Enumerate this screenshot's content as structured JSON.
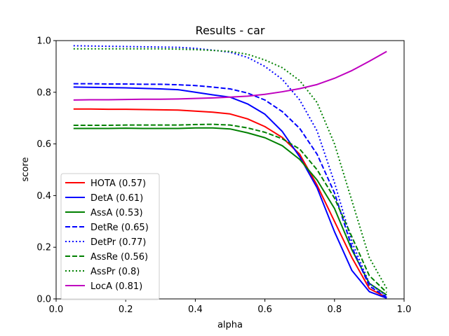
{
  "chart_data": {
    "type": "line",
    "title": "Results - car",
    "xlabel": "alpha",
    "ylabel": "score",
    "xlim": [
      0.0,
      1.0
    ],
    "ylim": [
      0.0,
      1.0
    ],
    "x_ticks": [
      "0.0",
      "0.2",
      "0.4",
      "0.6",
      "0.8",
      "1.0"
    ],
    "y_ticks": [
      "0.0",
      "0.2",
      "0.4",
      "0.6",
      "0.8",
      "1.0"
    ],
    "grid": false,
    "legend_position": "lower-left",
    "x": [
      0.05,
      0.1,
      0.15,
      0.2,
      0.25,
      0.3,
      0.35,
      0.4,
      0.45,
      0.5,
      0.55,
      0.6,
      0.65,
      0.7,
      0.75,
      0.8,
      0.85,
      0.9,
      0.95
    ],
    "series": [
      {
        "name": "HOTA (0.57)",
        "color": "#ff0000",
        "style": "solid",
        "values": [
          0.735,
          0.735,
          0.734,
          0.734,
          0.733,
          0.732,
          0.731,
          0.727,
          0.723,
          0.716,
          0.697,
          0.667,
          0.625,
          0.56,
          0.44,
          0.3,
          0.16,
          0.04,
          0.005
        ]
      },
      {
        "name": "DetA (0.61)",
        "color": "#0000ff",
        "style": "solid",
        "values": [
          0.82,
          0.819,
          0.818,
          0.817,
          0.815,
          0.813,
          0.81,
          0.8,
          0.79,
          0.781,
          0.755,
          0.715,
          0.648,
          0.55,
          0.43,
          0.26,
          0.11,
          0.028,
          0.003
        ]
      },
      {
        "name": "AssA (0.53)",
        "color": "#008000",
        "style": "solid",
        "values": [
          0.66,
          0.66,
          0.66,
          0.661,
          0.66,
          0.66,
          0.66,
          0.662,
          0.662,
          0.658,
          0.643,
          0.624,
          0.593,
          0.54,
          0.46,
          0.35,
          0.19,
          0.06,
          0.015
        ]
      },
      {
        "name": "DetRe (0.65)",
        "color": "#0000ff",
        "style": "dashed",
        "values": [
          0.833,
          0.833,
          0.832,
          0.832,
          0.831,
          0.831,
          0.829,
          0.826,
          0.82,
          0.813,
          0.797,
          0.77,
          0.725,
          0.66,
          0.56,
          0.41,
          0.2,
          0.05,
          0.006
        ]
      },
      {
        "name": "DetPr (0.77)",
        "color": "#0000ff",
        "style": "dotted",
        "values": [
          0.98,
          0.979,
          0.978,
          0.977,
          0.976,
          0.975,
          0.974,
          0.97,
          0.963,
          0.955,
          0.935,
          0.9,
          0.85,
          0.77,
          0.65,
          0.45,
          0.22,
          0.06,
          0.01
        ]
      },
      {
        "name": "AssRe (0.56)",
        "color": "#008000",
        "style": "dashed",
        "values": [
          0.672,
          0.672,
          0.672,
          0.673,
          0.673,
          0.673,
          0.673,
          0.675,
          0.676,
          0.673,
          0.662,
          0.645,
          0.62,
          0.58,
          0.5,
          0.39,
          0.24,
          0.09,
          0.025
        ]
      },
      {
        "name": "AssPr (0.8)",
        "color": "#008000",
        "style": "dotted",
        "values": [
          0.968,
          0.968,
          0.968,
          0.968,
          0.968,
          0.968,
          0.967,
          0.965,
          0.962,
          0.958,
          0.947,
          0.925,
          0.895,
          0.845,
          0.76,
          0.6,
          0.38,
          0.16,
          0.04
        ]
      },
      {
        "name": "LocA (0.81)",
        "color": "#bf00bf",
        "style": "solid",
        "values": [
          0.77,
          0.771,
          0.771,
          0.772,
          0.773,
          0.773,
          0.774,
          0.776,
          0.778,
          0.781,
          0.785,
          0.792,
          0.802,
          0.814,
          0.83,
          0.854,
          0.884,
          0.92,
          0.958
        ]
      }
    ]
  }
}
